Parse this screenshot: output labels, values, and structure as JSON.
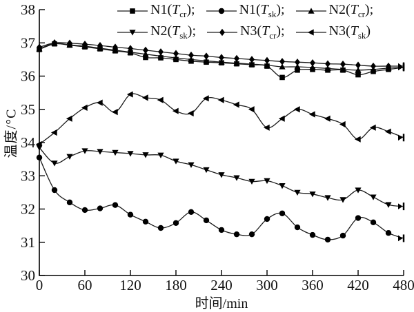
{
  "chart_data": {
    "type": "line",
    "xlabel": "时间/min",
    "ylabel": "温度/°C",
    "xlim": [
      0,
      480
    ],
    "ylim": [
      30,
      38
    ],
    "xticks": [
      0,
      60,
      120,
      180,
      240,
      300,
      360,
      420,
      480
    ],
    "yticks": [
      30,
      31,
      32,
      33,
      34,
      35,
      36,
      37,
      38
    ],
    "x": [
      0,
      20,
      40,
      60,
      80,
      100,
      120,
      140,
      160,
      180,
      200,
      220,
      240,
      260,
      280,
      300,
      320,
      340,
      360,
      380,
      400,
      420,
      440,
      460,
      480
    ],
    "series": [
      {
        "name": "N1(Tcr)",
        "marker": "square",
        "legend": {
          "prefix": "N1(",
          "tvar": "T",
          "sub": "cr",
          "suffix": ");"
        },
        "values": [
          36.8,
          36.97,
          36.93,
          36.88,
          36.82,
          36.76,
          36.7,
          36.56,
          36.55,
          36.5,
          36.45,
          36.42,
          36.4,
          36.37,
          36.34,
          36.3,
          35.96,
          36.18,
          36.2,
          36.18,
          36.18,
          36.04,
          36.14,
          36.2,
          36.26
        ]
      },
      {
        "name": "N1(Tsk)",
        "marker": "circle",
        "legend": {
          "prefix": "N1(",
          "tvar": "T",
          "sub": "sk",
          "suffix": ");"
        },
        "values": [
          33.55,
          32.57,
          32.2,
          31.97,
          32.02,
          32.12,
          31.83,
          31.62,
          31.43,
          31.58,
          31.91,
          31.66,
          31.37,
          31.24,
          31.24,
          31.7,
          31.87,
          31.45,
          31.22,
          31.08,
          31.2,
          31.73,
          31.6,
          31.28,
          31.12
        ]
      },
      {
        "name": "N2(Tcr)",
        "marker": "triangle-up",
        "legend": {
          "prefix": "N2(",
          "tvar": "T",
          "sub": "cr",
          "suffix": ");"
        },
        "values": [
          36.82,
          36.98,
          36.94,
          36.9,
          36.84,
          36.78,
          36.72,
          36.66,
          36.6,
          36.55,
          36.5,
          36.46,
          36.42,
          36.39,
          36.36,
          36.33,
          36.28,
          36.28,
          36.26,
          36.23,
          36.2,
          36.18,
          36.2,
          36.24,
          36.27
        ]
      },
      {
        "name": "N2(Tsk)",
        "marker": "triangle-down",
        "legend": {
          "prefix": "N2(",
          "tvar": "T",
          "sub": "sk",
          "suffix": ");"
        },
        "values": [
          33.85,
          33.38,
          33.58,
          33.75,
          33.73,
          33.7,
          33.67,
          33.63,
          33.62,
          33.44,
          33.33,
          33.18,
          33.03,
          32.94,
          32.83,
          32.85,
          32.7,
          32.5,
          32.45,
          32.34,
          32.28,
          32.57,
          32.36,
          32.13,
          32.08
        ]
      },
      {
        "name": "N3(Tcr)",
        "marker": "diamond",
        "legend": {
          "prefix": "N3(",
          "tvar": "T",
          "sub": "cr",
          "suffix": ");"
        },
        "values": [
          36.87,
          37.0,
          36.99,
          36.96,
          36.92,
          36.87,
          36.83,
          36.78,
          36.73,
          36.68,
          36.63,
          36.6,
          36.56,
          36.53,
          36.5,
          36.47,
          36.44,
          36.42,
          36.4,
          36.37,
          36.36,
          36.33,
          36.3,
          36.3,
          36.3
        ]
      },
      {
        "name": "N3(Tsk)",
        "marker": "triangle-left",
        "legend": {
          "prefix": "N3(",
          "tvar": "T",
          "sub": "sk",
          "suffix": ")"
        },
        "values": [
          33.95,
          34.3,
          34.72,
          35.05,
          35.2,
          34.92,
          35.45,
          35.35,
          35.28,
          34.95,
          34.88,
          35.33,
          35.28,
          35.14,
          35.0,
          34.45,
          34.72,
          35.0,
          34.85,
          34.72,
          34.55,
          34.1,
          34.45,
          34.33,
          34.15
        ]
      }
    ],
    "legend_rows": [
      [
        0,
        1,
        2
      ],
      [
        3,
        4,
        5
      ]
    ],
    "line_color": "#1a1a1a",
    "marker_color": "#000000"
  }
}
